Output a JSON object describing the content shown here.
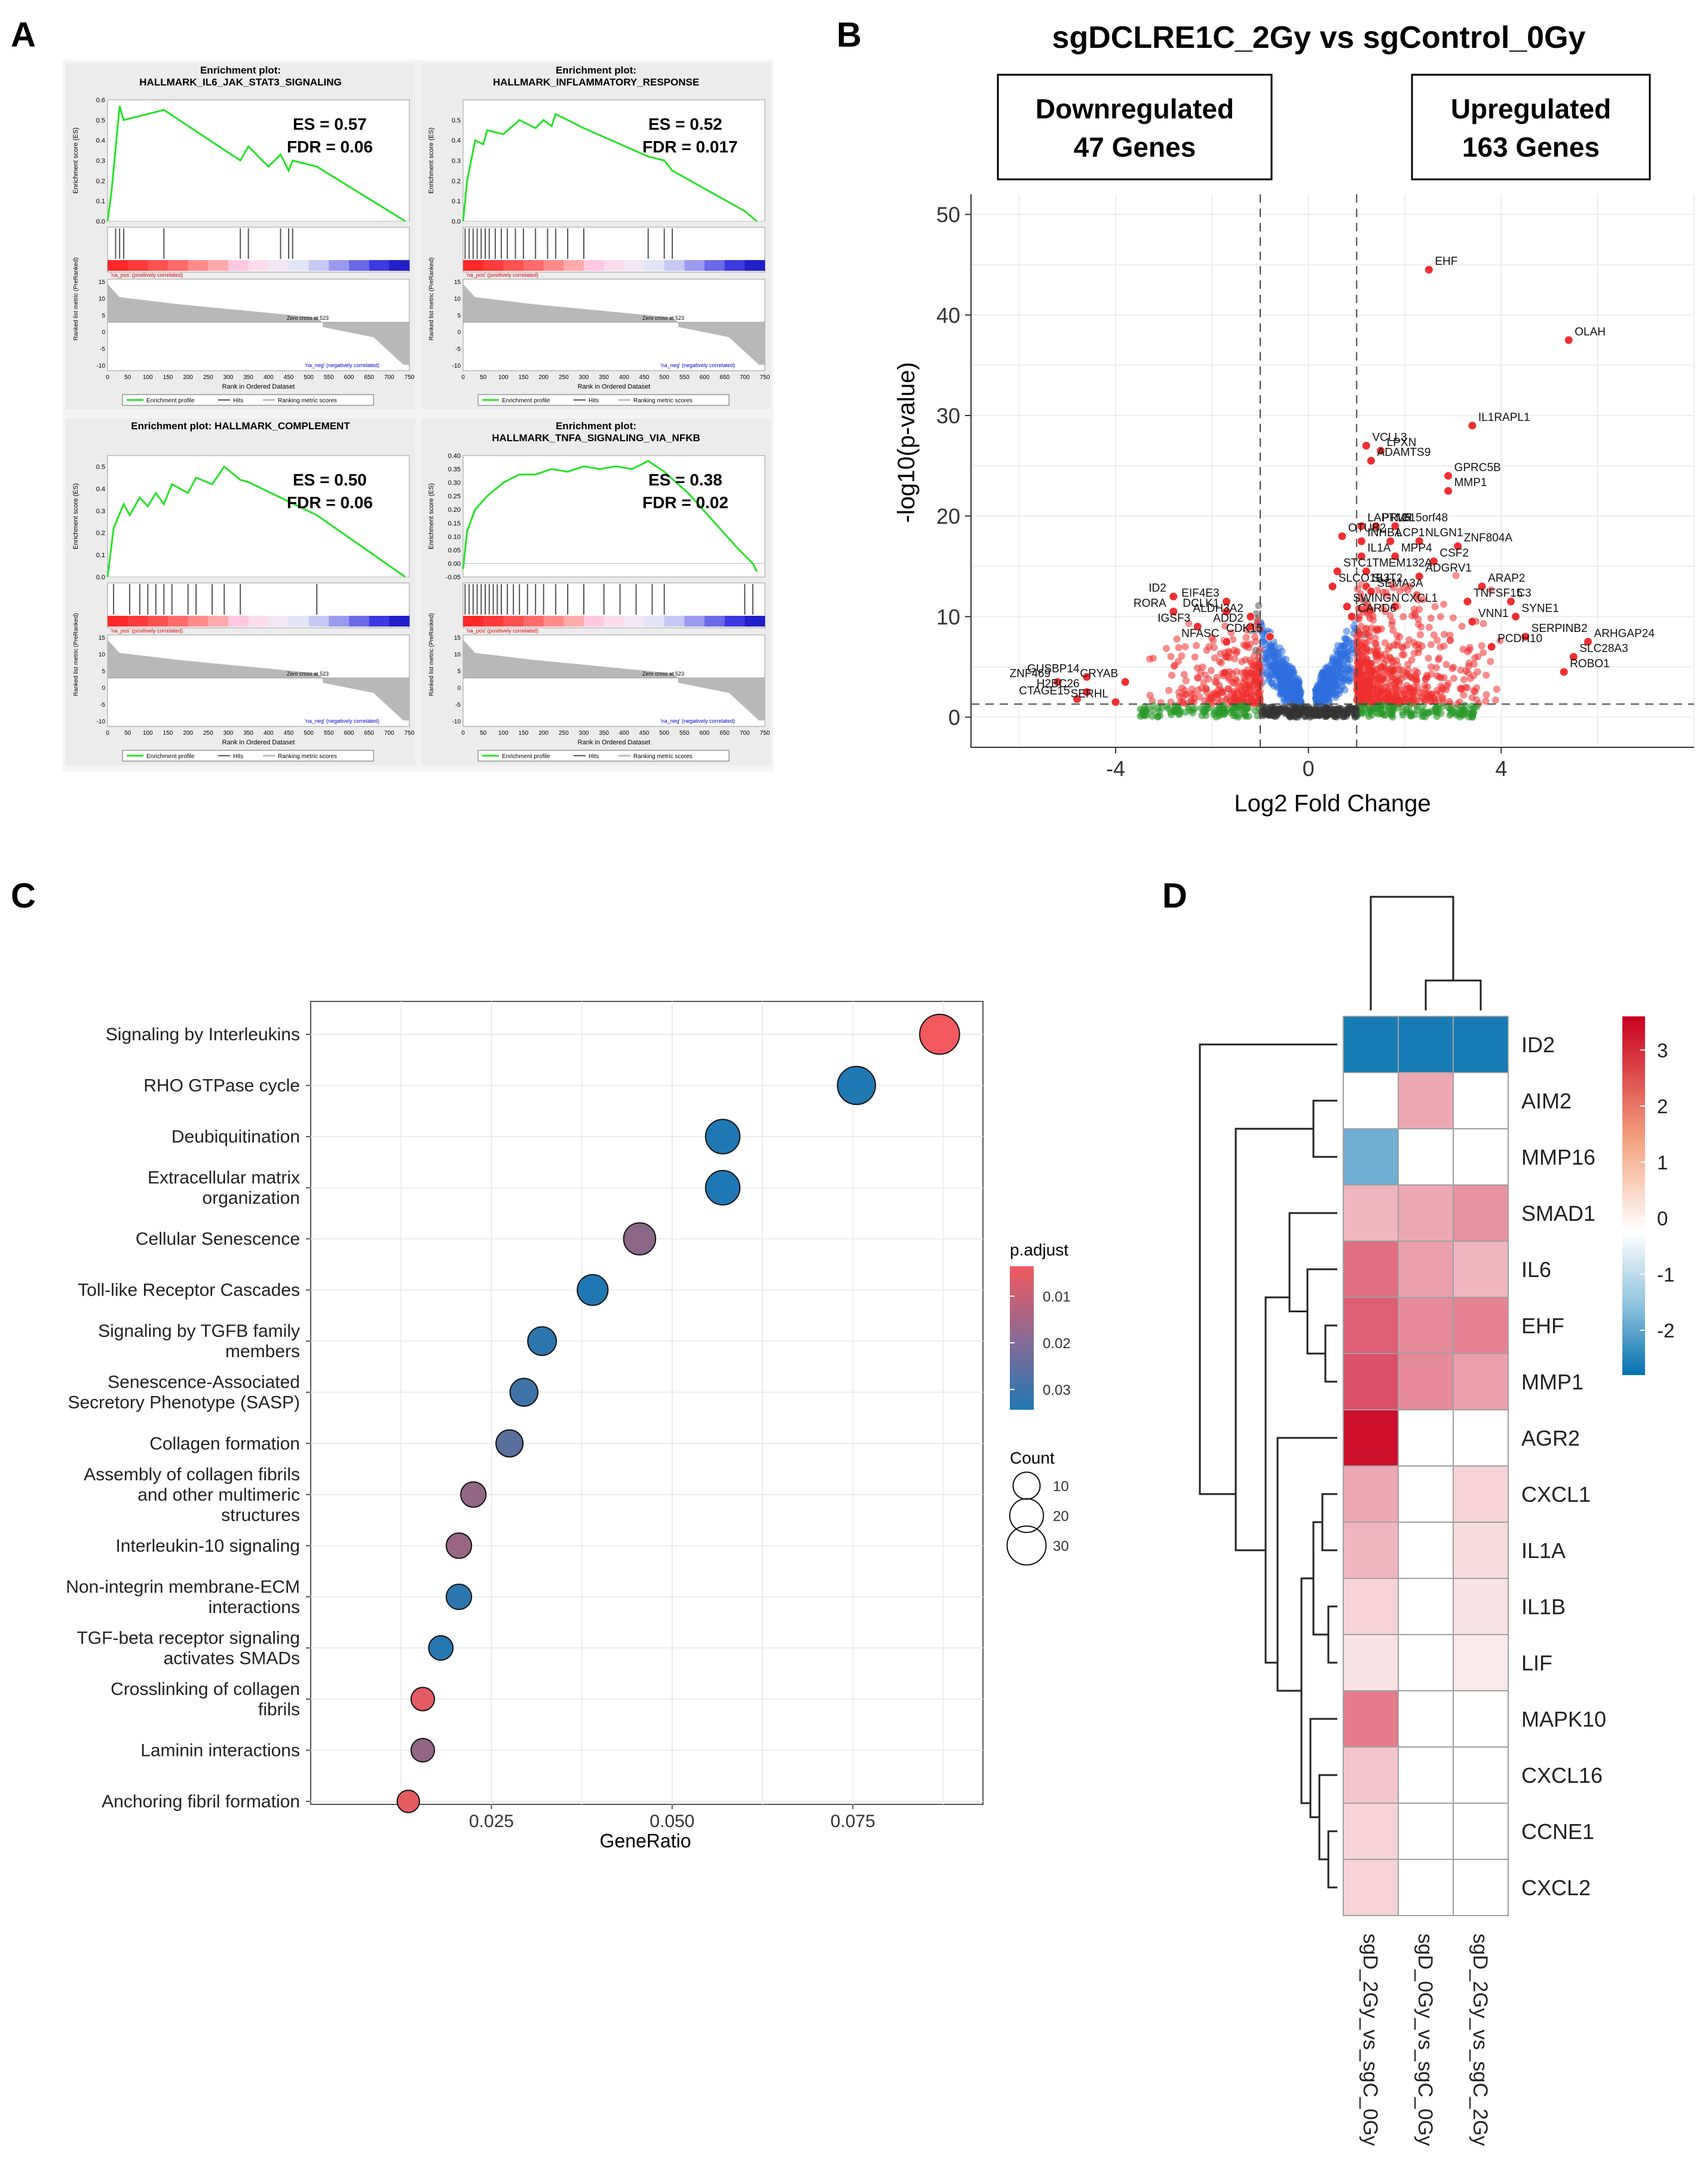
{
  "figure": {
    "panel_labels": [
      "A",
      "B",
      "C",
      "D"
    ]
  },
  "chart_data": [
    {
      "panel": "A1",
      "type": "line",
      "title_line1": "Enrichment plot:",
      "title_line2": "HALLMARK_IL6_JAK_STAT3_SIGNALING",
      "es_text": "ES = 0.57",
      "fdr_text": "FDR = 0.06",
      "x": [
        0,
        10,
        30,
        40,
        140,
        330,
        350,
        400,
        430,
        450,
        460,
        520,
        740
      ],
      "y": [
        0.0,
        0.15,
        0.57,
        0.5,
        0.55,
        0.3,
        0.37,
        0.27,
        0.33,
        0.25,
        0.3,
        0.27,
        0.0
      ],
      "ylim": [
        0,
        0.6
      ],
      "yticks": [
        "0.6",
        "0.5",
        "0.4",
        "0.3",
        "0.2",
        "0.1",
        "0.0"
      ],
      "hits": [
        20,
        30,
        40,
        140,
        330,
        350,
        430,
        450,
        460
      ],
      "zero_cross": "Zero cross at 523",
      "ylabel": "Enrichment score (ES)",
      "ylabel2": "Ranked list metric (PreRanked)",
      "xlabel": "Rank in Ordered Dataset",
      "legend": [
        "Enrichment profile",
        "Hits",
        "Ranking metric scores"
      ]
    },
    {
      "panel": "A2",
      "type": "line",
      "title_line1": "Enrichment plot:",
      "title_line2": "HALLMARK_INFLAMMATORY_RESPONSE",
      "es_text": "ES = 0.52",
      "fdr_text": "FDR = 0.017",
      "x": [
        0,
        10,
        30,
        50,
        60,
        100,
        140,
        180,
        200,
        220,
        230,
        300,
        460,
        500,
        520,
        700,
        730
      ],
      "y": [
        0.0,
        0.2,
        0.4,
        0.38,
        0.45,
        0.43,
        0.5,
        0.46,
        0.5,
        0.47,
        0.53,
        0.46,
        0.32,
        0.3,
        0.25,
        0.05,
        0.0
      ],
      "ylim": [
        0,
        0.6
      ],
      "yticks": [
        "0.5",
        "0.4",
        "0.3",
        "0.2",
        "0.1",
        "0.0"
      ],
      "hits": [
        5,
        15,
        25,
        35,
        45,
        55,
        65,
        80,
        95,
        110,
        130,
        150,
        180,
        210,
        230,
        260,
        300,
        460,
        500,
        520
      ],
      "zero_cross": "Zero cross at 523",
      "ylabel": "Enrichment score (ES)",
      "ylabel2": "Ranked list metric (PreRanked)",
      "xlabel": "Rank in Ordered Dataset",
      "legend": [
        "Enrichment profile",
        "Hits",
        "Ranking metric scores"
      ]
    },
    {
      "panel": "A3",
      "type": "line",
      "title_line1": "Enrichment plot: HALLMARK_COMPLEMENT",
      "title_line2": "",
      "es_text": "ES = 0.50",
      "fdr_text": "FDR = 0.06",
      "x": [
        0,
        15,
        40,
        55,
        80,
        100,
        120,
        140,
        160,
        200,
        220,
        260,
        290,
        330,
        350,
        520,
        740
      ],
      "y": [
        0.0,
        0.22,
        0.33,
        0.28,
        0.36,
        0.32,
        0.38,
        0.33,
        0.42,
        0.38,
        0.45,
        0.42,
        0.5,
        0.44,
        0.43,
        0.28,
        0.0
      ],
      "ylim": [
        0,
        0.55
      ],
      "yticks": [
        "0.5",
        "0.4",
        "0.3",
        "0.2",
        "0.1",
        "0.0"
      ],
      "hits": [
        15,
        55,
        80,
        100,
        120,
        140,
        160,
        200,
        220,
        260,
        290,
        330,
        520
      ],
      "zero_cross": "Zero cross at 523",
      "ylabel": "Enrichment score (ES)",
      "ylabel2": "Ranked list metric (PreRanked)",
      "xlabel": "Rank in Ordered Dataset",
      "legend": [
        "Enrichment profile",
        "Hits",
        "Ranking metric scores"
      ]
    },
    {
      "panel": "A4",
      "type": "line",
      "title_line1": "Enrichment plot:",
      "title_line2": "HALLMARK_TNFA_SIGNALING_VIA_NFKB",
      "es_text": "ES = 0.38",
      "fdr_text": "FDR = 0.02",
      "x": [
        0,
        10,
        30,
        60,
        100,
        140,
        180,
        220,
        260,
        300,
        340,
        380,
        420,
        460,
        500,
        560,
        620,
        680,
        720,
        730
      ],
      "y": [
        -0.02,
        0.12,
        0.2,
        0.25,
        0.3,
        0.33,
        0.33,
        0.35,
        0.34,
        0.36,
        0.35,
        0.36,
        0.35,
        0.38,
        0.34,
        0.26,
        0.16,
        0.06,
        0.0,
        -0.03
      ],
      "ylim": [
        -0.05,
        0.4
      ],
      "yticks": [
        "0.40",
        "0.35",
        "0.30",
        "0.25",
        "0.20",
        "0.15",
        "0.10",
        "0.05",
        "0.00",
        "-0.05"
      ],
      "hits": [
        5,
        15,
        25,
        35,
        45,
        55,
        65,
        75,
        85,
        95,
        110,
        125,
        140,
        160,
        180,
        200,
        230,
        260,
        300,
        350,
        390,
        430,
        470,
        500,
        700,
        720
      ],
      "zero_cross": "Zero cross at 523",
      "ylabel": "Enrichment score (ES)",
      "ylabel2": "Ranked list metric (PreRanked)",
      "xlabel": "Rank in Ordered Dataset",
      "legend": [
        "Enrichment profile",
        "Hits",
        "Ranking metric scores"
      ]
    },
    {
      "panel": "B",
      "type": "scatter",
      "title": "sgDCLRE1C_2Gy vs sgControl_0Gy",
      "down_label_1": "Downregulated",
      "down_label_2": "47 Genes",
      "up_label_1": "Upregulated",
      "up_label_2": "163 Genes",
      "xlabel": "Log2 Fold Change",
      "ylabel": "-log10(p-value)",
      "xlim": [
        -7,
        8
      ],
      "ylim": [
        -3,
        52
      ],
      "xticks": [
        -4,
        0,
        4
      ],
      "yticks": [
        0,
        10,
        20,
        30,
        40,
        50
      ],
      "vlines": [
        -1,
        1
      ],
      "hline": 1.3,
      "genes": [
        {
          "name": "EHF",
          "x": 2.5,
          "y": 44.5
        },
        {
          "name": "OLAH",
          "x": 5.4,
          "y": 37.5
        },
        {
          "name": "IL1RAPL1",
          "x": 3.4,
          "y": 29.0
        },
        {
          "name": "VCLL3",
          "x": 1.2,
          "y": 27.0
        },
        {
          "name": "LPXN",
          "x": 1.5,
          "y": 26.5
        },
        {
          "name": "ADAMTS9",
          "x": 1.3,
          "y": 25.5
        },
        {
          "name": "GPRC5B",
          "x": 2.9,
          "y": 24.0
        },
        {
          "name": "MMP1",
          "x": 2.9,
          "y": 22.5
        },
        {
          "name": "LAPTM5",
          "x": 1.1,
          "y": 19.0
        },
        {
          "name": "PRLR",
          "x": 1.4,
          "y": 19.0
        },
        {
          "name": "C15orf48",
          "x": 1.8,
          "y": 19.0
        },
        {
          "name": "OTUB2",
          "x": 0.7,
          "y": 18.0
        },
        {
          "name": "INHBA",
          "x": 1.1,
          "y": 17.5
        },
        {
          "name": "LCP1",
          "x": 1.7,
          "y": 17.5
        },
        {
          "name": "NLGN1",
          "x": 2.3,
          "y": 17.5
        },
        {
          "name": "ZNF804A",
          "x": 3.1,
          "y": 17.0
        },
        {
          "name": "IL1A",
          "x": 1.1,
          "y": 16.0
        },
        {
          "name": "MPP4",
          "x": 1.8,
          "y": 16.0
        },
        {
          "name": "CSF2",
          "x": 2.6,
          "y": 15.5
        },
        {
          "name": "STC1",
          "x": 0.6,
          "y": 14.5
        },
        {
          "name": "TMEM132A",
          "x": 1.2,
          "y": 14.5
        },
        {
          "name": "ADGRV1",
          "x": 2.3,
          "y": 14.0
        },
        {
          "name": "SLCO1B3",
          "x": 0.5,
          "y": 13.0
        },
        {
          "name": "SLIT2",
          "x": 1.2,
          "y": 13.0
        },
        {
          "name": "ARAP2",
          "x": 3.6,
          "y": 13.0
        },
        {
          "name": "SEMA3A",
          "x": 1.3,
          "y": 12.5
        },
        {
          "name": "TNFSF15",
          "x": 3.3,
          "y": 11.5
        },
        {
          "name": "C3",
          "x": 4.2,
          "y": 11.5
        },
        {
          "name": "SWINGN",
          "x": 0.8,
          "y": 11.0
        },
        {
          "name": "CXCL1",
          "x": 1.8,
          "y": 11.0
        },
        {
          "name": "SYNE1",
          "x": 4.3,
          "y": 10.0
        },
        {
          "name": "CARD6",
          "x": 0.9,
          "y": 10.0
        },
        {
          "name": "VNN1",
          "x": 3.4,
          "y": 9.5
        },
        {
          "name": "ID2",
          "x": -2.8,
          "y": 12.0
        },
        {
          "name": "EIF4E3",
          "x": -1.7,
          "y": 11.5
        },
        {
          "name": "RORA",
          "x": -2.8,
          "y": 10.5
        },
        {
          "name": "DCLK1",
          "x": -1.7,
          "y": 10.5
        },
        {
          "name": "ALDH3A2",
          "x": -1.2,
          "y": 10.0
        },
        {
          "name": "IGSF3",
          "x": -2.3,
          "y": 9.0
        },
        {
          "name": "ADD2",
          "x": -1.2,
          "y": 9.0
        },
        {
          "name": "CDK15",
          "x": -0.8,
          "y": 8.0
        },
        {
          "name": "NFASC",
          "x": -1.7,
          "y": 7.5
        },
        {
          "name": "SERPINB2",
          "x": 4.5,
          "y": 8.0
        },
        {
          "name": "ARHGAP24",
          "x": 5.8,
          "y": 7.5
        },
        {
          "name": "PCDH10",
          "x": 3.8,
          "y": 7.0
        },
        {
          "name": "SLC28A3",
          "x": 5.5,
          "y": 6.0
        },
        {
          "name": "ROBO1",
          "x": 5.3,
          "y": 4.5
        },
        {
          "name": "ZNF469",
          "x": -5.2,
          "y": 3.5
        },
        {
          "name": "GUSBP14",
          "x": -4.6,
          "y": 4.0
        },
        {
          "name": "CRYAB",
          "x": -3.8,
          "y": 3.5
        },
        {
          "name": "H2BC26",
          "x": -4.6,
          "y": 2.5
        },
        {
          "name": "CTAGE15",
          "x": -4.8,
          "y": 1.8
        },
        {
          "name": "SERHL",
          "x": -4.0,
          "y": 1.5
        }
      ]
    },
    {
      "panel": "C",
      "type": "scatter",
      "xlabel": "GeneRatio",
      "xticks": [
        "0.025",
        "0.050",
        "0.075"
      ],
      "xlim": [
        0.0,
        0.093
      ],
      "categories": [
        "Signaling by Interleukins",
        "RHO GTPase cycle",
        "Deubiquitination",
        "Extracellular matrix organization",
        "Cellular Senescence",
        "Toll-like Receptor Cascades",
        "Signaling by TGFB family members",
        "Senescence-Associated Secretory Phenotype (SASP)",
        "Collagen formation",
        "Assembly of collagen fibrils and other multimeric structures",
        "Interleukin-10 signaling",
        "Non-integrin membrane-ECM interactions",
        "TGF-beta receptor signaling activates SMADs",
        "Crosslinking of collagen fibrils",
        "Laminin interactions",
        "Anchoring fibril formation"
      ],
      "category_lines": [
        [
          "Signaling by Interleukins"
        ],
        [
          "RHO GTPase cycle"
        ],
        [
          "Deubiquitination"
        ],
        [
          "Extracellular matrix",
          "organization"
        ],
        [
          "Cellular Senescence"
        ],
        [
          "Toll-like Receptor Cascades"
        ],
        [
          "Signaling by TGFB family",
          "members"
        ],
        [
          "Senescence-Associated",
          "Secretory Phenotype (SASP)"
        ],
        [
          "Collagen formation"
        ],
        [
          "Assembly of collagen fibrils",
          "and other multimeric",
          "structures"
        ],
        [
          "Interleukin-10 signaling"
        ],
        [
          "Non-integrin membrane-ECM",
          "interactions"
        ],
        [
          "TGF-beta receptor signaling",
          "activates SMADs"
        ],
        [
          "Crosslinking of collagen",
          "fibrils"
        ],
        [
          "Laminin interactions"
        ],
        [
          "Anchoring fibril formation"
        ]
      ],
      "gene_ratio": [
        0.087,
        0.0755,
        0.057,
        0.057,
        0.0455,
        0.039,
        0.032,
        0.0295,
        0.0275,
        0.0225,
        0.0205,
        0.0205,
        0.018,
        0.0155,
        0.0155,
        0.0135
      ],
      "count": [
        32,
        28,
        21,
        21,
        17,
        15,
        12,
        11,
        10,
        8,
        8,
        8,
        7,
        6,
        6,
        5
      ],
      "p_adjust": [
        0.002,
        0.035,
        0.035,
        0.035,
        0.018,
        0.035,
        0.033,
        0.03,
        0.026,
        0.017,
        0.016,
        0.033,
        0.034,
        0.004,
        0.017,
        0.004
      ],
      "legend_title_color": "p.adjust",
      "color_ticks": [
        "0.01",
        "0.02",
        "0.03"
      ],
      "legend_title_size": "Count",
      "size_ticks": [
        "10",
        "20",
        "30"
      ],
      "colors": {
        "low": "#f2595e",
        "high": "#1f78b4"
      }
    },
    {
      "panel": "D",
      "type": "heatmap",
      "rows": [
        "ID2",
        "AIM2",
        "MMP16",
        "SMAD1",
        "IL6",
        "EHF",
        "MMP1",
        "AGR2",
        "CXCL1",
        "IL1A",
        "IL1B",
        "LIF",
        "MAPK10",
        "CXCL16",
        "CCNE1",
        "CXCL2"
      ],
      "columns": [
        "sgD_2Gy_vs_sgC_0Gy",
        "sgD_0Gy_vs_sgC_0Gy",
        "sgD_2Gy_vs_sgC_2Gy"
      ],
      "values": [
        [
          -2.6,
          -2.6,
          -2.6
        ],
        [
          0.0,
          1.2,
          0.0
        ],
        [
          -1.6,
          0.0,
          0.0
        ],
        [
          1.0,
          1.2,
          1.5
        ],
        [
          2.0,
          1.3,
          1.0
        ],
        [
          2.2,
          1.6,
          1.7
        ],
        [
          2.4,
          1.6,
          1.3
        ],
        [
          3.3,
          0.0,
          0.0
        ],
        [
          1.2,
          0.0,
          0.6
        ],
        [
          1.0,
          0.0,
          0.5
        ],
        [
          0.6,
          0.0,
          0.4
        ],
        [
          0.4,
          0.0,
          0.3
        ],
        [
          1.8,
          0.0,
          0.0
        ],
        [
          0.8,
          0.0,
          0.0
        ],
        [
          0.6,
          0.0,
          0.0
        ],
        [
          0.6,
          0.0,
          0.0
        ]
      ],
      "colorbar_ticks": [
        "3",
        "2",
        "1",
        "0",
        "-1",
        "-2"
      ],
      "colorbar_range": [
        -2.8,
        3.6
      ]
    }
  ]
}
